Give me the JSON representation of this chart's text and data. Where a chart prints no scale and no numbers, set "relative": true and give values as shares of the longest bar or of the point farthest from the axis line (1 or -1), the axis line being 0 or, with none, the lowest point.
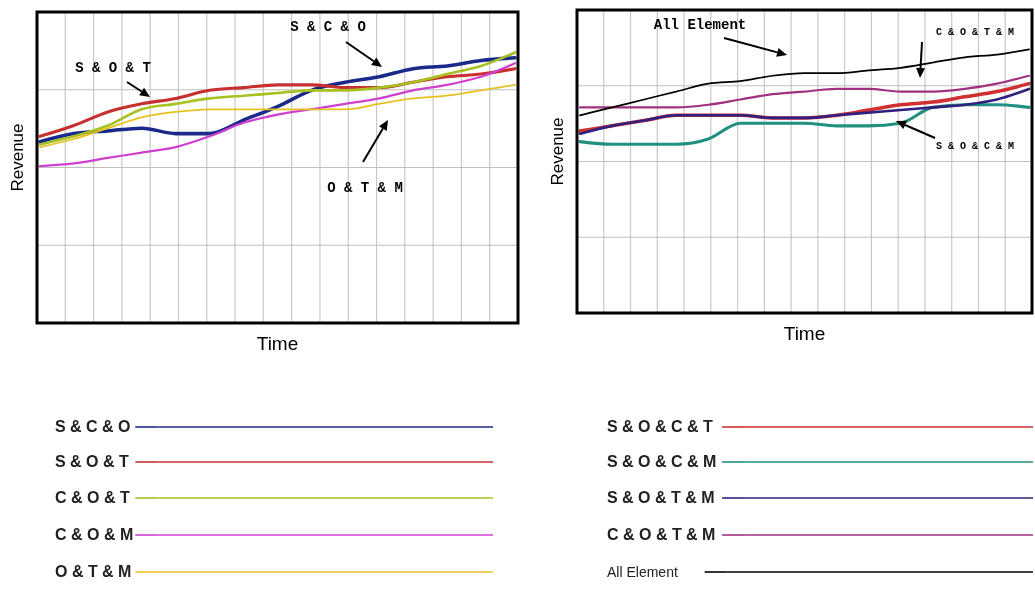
{
  "chart_data": [
    {
      "type": "line",
      "xlabel": "Time",
      "ylabel": "Revenue",
      "relative": true,
      "grid": true,
      "legend": "bottom",
      "categories": [
        null,
        null,
        null,
        null,
        null,
        null,
        null,
        null,
        null,
        null,
        null,
        null,
        null,
        null,
        null
      ],
      "annotations": [
        "S & O & T",
        "S & C & O",
        "O & T & M"
      ],
      "series": [
        {
          "name": "S & C & O",
          "color": "#1a2a8a",
          "values": [
            0.67,
            0.7,
            0.71,
            0.72,
            0.7,
            0.7,
            0.75,
            0.8,
            0.86,
            0.89,
            0.91,
            0.94,
            0.95,
            0.97,
            0.98
          ]
        },
        {
          "name": "S & O & T",
          "color": "#c83030",
          "values": [
            0.69,
            0.73,
            0.78,
            0.81,
            0.83,
            0.86,
            0.87,
            0.88,
            0.88,
            0.87,
            0.87,
            0.89,
            0.91,
            0.92,
            0.94
          ]
        },
        {
          "name": "C & O & T",
          "color": "#a8c020",
          "values": [
            0.66,
            0.69,
            0.73,
            0.79,
            0.81,
            0.83,
            0.84,
            0.85,
            0.86,
            0.86,
            0.87,
            0.89,
            0.92,
            0.95,
            1.0
          ]
        },
        {
          "name": "C & O & M",
          "color": "#d040d0",
          "values": [
            0.58,
            0.59,
            0.61,
            0.63,
            0.65,
            0.69,
            0.74,
            0.77,
            0.79,
            0.81,
            0.83,
            0.86,
            0.88,
            0.91,
            0.96
          ]
        },
        {
          "name": "O & T & M",
          "color": "#e8c020",
          "values": [
            0.65,
            0.68,
            0.72,
            0.76,
            0.78,
            0.79,
            0.79,
            0.79,
            0.79,
            0.79,
            0.81,
            0.83,
            0.84,
            0.86,
            0.88
          ]
        }
      ]
    },
    {
      "type": "line",
      "xlabel": "Time",
      "ylabel": "Revenue",
      "relative": true,
      "grid": true,
      "legend": "bottom",
      "categories": [
        null,
        null,
        null,
        null,
        null,
        null,
        null,
        null,
        null,
        null,
        null,
        null,
        null,
        null,
        null
      ],
      "annotations": [
        "All Element",
        "C & O & T & M",
        "S & O & C & M"
      ],
      "series": [
        {
          "name": "S & O & C & T",
          "color": "#d03030",
          "values": [
            0.69,
            0.71,
            0.73,
            0.75,
            0.75,
            0.75,
            0.74,
            0.74,
            0.75,
            0.77,
            0.79,
            0.8,
            0.82,
            0.84,
            0.87
          ]
        },
        {
          "name": "S & O & C & M",
          "color": "#209080",
          "values": [
            0.65,
            0.64,
            0.64,
            0.64,
            0.66,
            0.72,
            0.72,
            0.72,
            0.71,
            0.71,
            0.72,
            0.78,
            0.79,
            0.79,
            0.78
          ]
        },
        {
          "name": "S & O & T & M",
          "color": "#302080",
          "values": [
            0.68,
            0.71,
            0.73,
            0.75,
            0.75,
            0.75,
            0.74,
            0.74,
            0.75,
            0.76,
            0.77,
            0.78,
            0.79,
            0.81,
            0.85
          ]
        },
        {
          "name": "C & O & T & M",
          "color": "#a03080",
          "values": [
            0.78,
            0.78,
            0.78,
            0.78,
            0.79,
            0.81,
            0.83,
            0.84,
            0.85,
            0.85,
            0.84,
            0.84,
            0.85,
            0.87,
            0.9
          ]
        },
        {
          "name": "All Element",
          "color": "#000000",
          "values": [
            0.75,
            0.78,
            0.81,
            0.84,
            0.87,
            0.88,
            0.9,
            0.91,
            0.91,
            0.92,
            0.93,
            0.95,
            0.97,
            0.98,
            1.0
          ]
        }
      ]
    }
  ]
}
